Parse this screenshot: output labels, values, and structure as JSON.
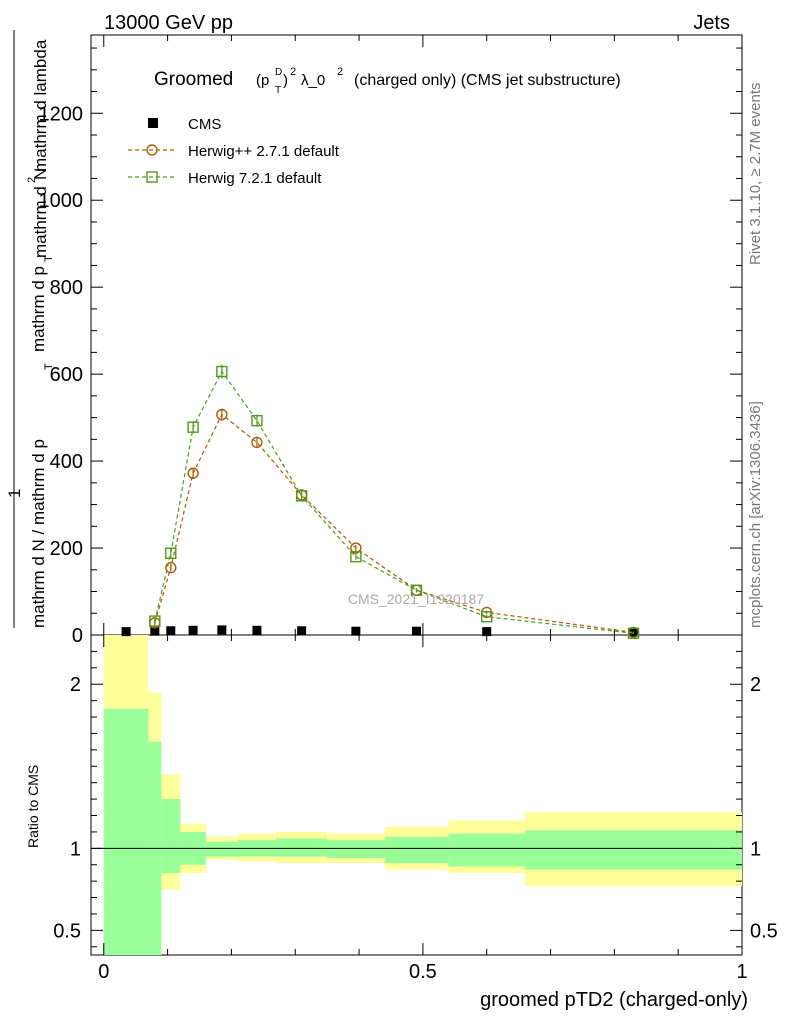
{
  "header": {
    "left": "13000 GeV pp",
    "right": "Jets"
  },
  "side_labels": {
    "rivet": "Rivet 3.1.10, ≥ 2.7M events",
    "mcplots": "mcplots.cern.ch [arXiv:1306.3436]"
  },
  "plot_title": {
    "main": "Groomed",
    "formula_p": "(p",
    "formula_sup": "D",
    "formula_sub": "T",
    "formula_rest": ")",
    "formula_exp": "2",
    "formula_lambda": "λ_0",
    "formula_lambda_exp": "2",
    "suffix": "(charged only) (CMS jet substructure)"
  },
  "watermark": "CMS_2021_I1920187",
  "y_axis_label": {
    "line1": "mathrm d N / mathrm d p",
    "line1_sub": "T",
    "line1_rest": " mathrm d lambda",
    "frac_num": "1",
    "frac_den_top": "mathrm d",
    "frac_den_top2": "N",
    "frac_den": "mathrm d p",
    "frac_den_sub": "T",
    "frac_den_rest": " mathrm d lambda",
    "prefix": "mathrm d N / mathrm d p",
    "prefix_sub": "T",
    "prefix_rest": " mathrm"
  },
  "y_axis_text": {
    "numerator_top": "mathrm d",
    "numerator_top_sup": "2",
    "numerator_top_N": "N",
    "denominator_mid": "mathrm d p",
    "denominator_mid_sub": "T",
    "denominator_mid_rest": " mathrm d lambda",
    "one": "1",
    "bottom": "mathrm d N / mathrm d p",
    "bottom_sub": "T",
    "bottom_rest": " mathrm"
  },
  "ratio_y_label": "Ratio to CMS",
  "x_axis_label": "groomed pTD2 (charged-only)",
  "legend": [
    {
      "name": "CMS",
      "color": "#000000",
      "marker": "square-filled"
    },
    {
      "name": "Herwig++ 2.7.1 default",
      "color": "#b35900",
      "marker": "circle-open"
    },
    {
      "name": "Herwig 7.2.1 default",
      "color": "#4c9c1c",
      "marker": "square-open"
    }
  ],
  "chart_data": [
    {
      "type": "line",
      "panel": "main",
      "xlim": [
        -0.02,
        1.0
      ],
      "ylim": [
        0,
        1380
      ],
      "yticks": [
        "0",
        "200",
        "400",
        "600",
        "800",
        "1000",
        "1200"
      ],
      "ytick_values": [
        0,
        200,
        400,
        600,
        800,
        1000,
        1200
      ],
      "data_x": [
        0.035,
        0.08,
        0.105,
        0.14,
        0.185,
        0.24,
        0.31,
        0.395,
        0.49,
        0.6,
        0.83
      ],
      "series": [
        {
          "name": "CMS",
          "color": "#000000",
          "marker": "square-filled",
          "x": [
            0.035,
            0.08,
            0.105,
            0.14,
            0.185,
            0.24,
            0.31,
            0.395,
            0.49,
            0.6,
            0.83
          ],
          "values": [
            2,
            3,
            4,
            5,
            6,
            5,
            4,
            3,
            3,
            2,
            1
          ]
        },
        {
          "name": "Herwig++ 2.7.1 default",
          "color": "#b35900",
          "marker": "circle-open",
          "x": [
            0.08,
            0.105,
            0.14,
            0.185,
            0.24,
            0.31,
            0.395,
            0.49,
            0.6,
            0.83
          ],
          "values": [
            28,
            155,
            372,
            507,
            443,
            322,
            200,
            103,
            52,
            6
          ],
          "errors": [
            6,
            9,
            12,
            14,
            12,
            9,
            7,
            5,
            4,
            2
          ]
        },
        {
          "name": "Herwig 7.2.1 default",
          "color": "#4c9c1c",
          "marker": "square-open",
          "x": [
            0.08,
            0.105,
            0.14,
            0.185,
            0.24,
            0.31,
            0.395,
            0.49,
            0.6,
            0.83
          ],
          "values": [
            32,
            188,
            478,
            606,
            493,
            320,
            180,
            103,
            42,
            4
          ],
          "errors": [
            6,
            10,
            14,
            16,
            14,
            10,
            7,
            5,
            4,
            2
          ]
        }
      ]
    },
    {
      "type": "area",
      "panel": "ratio",
      "xlim": [
        -0.02,
        1.0
      ],
      "ylim": [
        0.35,
        2.3
      ],
      "xticks": [
        "0",
        "0.5",
        "1"
      ],
      "xtick_values": [
        0,
        0.5,
        1
      ],
      "yticks": [
        "0.5",
        "1",
        "2"
      ],
      "ytick_values": [
        0.5,
        1,
        2
      ],
      "reference_line": 1,
      "bin_edges": [
        0.0,
        0.07,
        0.09,
        0.12,
        0.16,
        0.21,
        0.27,
        0.35,
        0.44,
        0.54,
        0.66,
        1.0
      ],
      "yellow_band": {
        "name": "",
        "color": "#ffff99",
        "upper": [
          2.3,
          1.95,
          1.45,
          1.15,
          1.07,
          1.09,
          1.1,
          1.09,
          1.13,
          1.17,
          1.22
        ],
        "lower": [
          0.35,
          0.35,
          0.75,
          0.85,
          0.93,
          0.92,
          0.91,
          0.91,
          0.87,
          0.85,
          0.77
        ]
      },
      "green_band": {
        "name": "",
        "color": "#99ff99",
        "upper": [
          1.85,
          1.65,
          1.3,
          1.1,
          1.04,
          1.05,
          1.06,
          1.05,
          1.07,
          1.09,
          1.11
        ],
        "lower": [
          0.35,
          0.35,
          0.85,
          0.9,
          0.95,
          0.95,
          0.95,
          0.94,
          0.91,
          0.89,
          0.87
        ]
      }
    }
  ]
}
